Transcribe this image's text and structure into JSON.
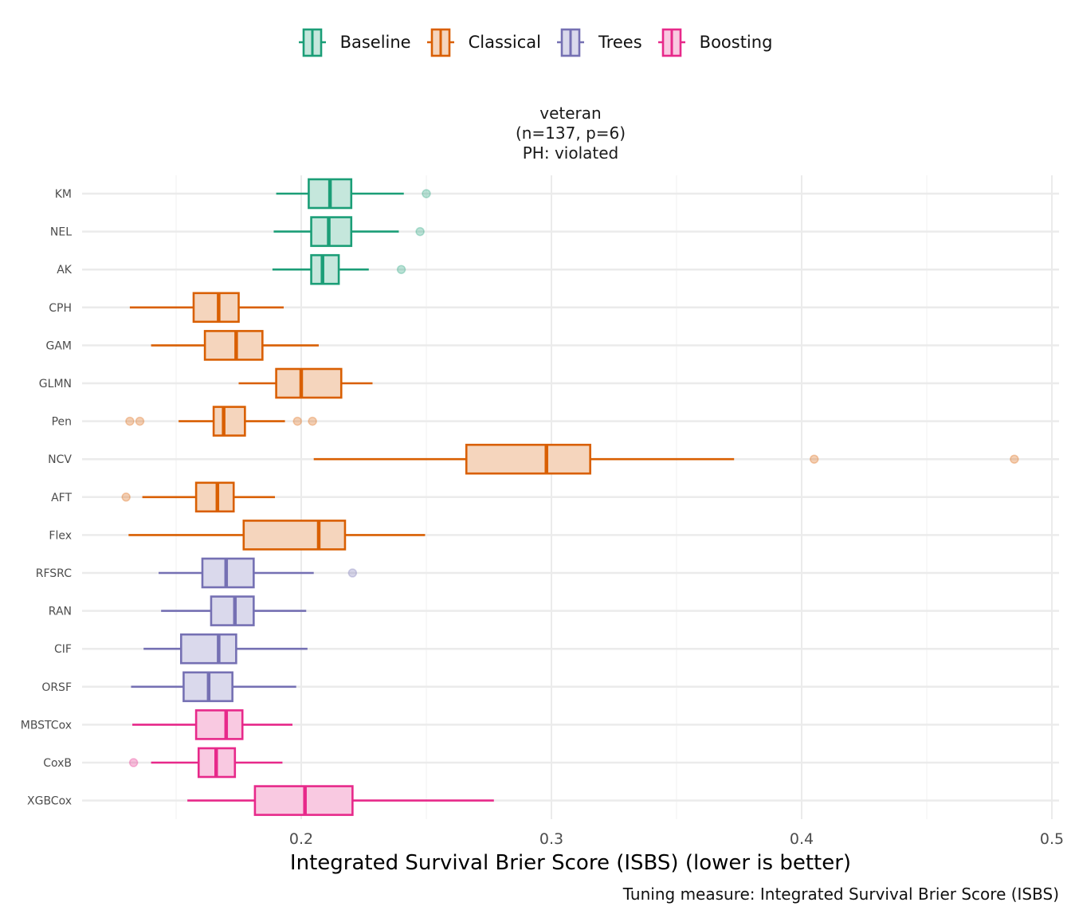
{
  "chart_data": {
    "type": "boxplot",
    "orientation": "horizontal",
    "facet_title": [
      "veteran",
      "(n=137, p=6)",
      "PH: violated"
    ],
    "xlabel": "Integrated Survival Brier Score (ISBS) (lower is better)",
    "ylabel": "",
    "caption": "Tuning measure: Integrated Survival Brier Score (ISBS)",
    "xlim": [
      0.115,
      0.503
    ],
    "x_ticks": [
      0.2,
      0.3,
      0.4,
      0.5
    ],
    "x_tick_labels": [
      "0.2",
      "0.3",
      "0.4",
      "0.5"
    ],
    "x_minor_gridlines": [
      0.15,
      0.25,
      0.35,
      0.45
    ],
    "grid": true,
    "legend_position": "top",
    "legend": [
      {
        "group": "Baseline",
        "color": "#1b9e77",
        "fill": "#c5e7dc"
      },
      {
        "group": "Classical",
        "color": "#d95f02",
        "fill": "#f5d5bd"
      },
      {
        "group": "Trees",
        "color": "#7570b3",
        "fill": "#dad9ec"
      },
      {
        "group": "Boosting",
        "color": "#e7298a",
        "fill": "#f9c9e1"
      }
    ],
    "boxes": [
      {
        "model": "KM",
        "group": "Baseline",
        "whisker_low": 0.19,
        "q1": 0.203,
        "median": 0.2115,
        "q3": 0.22,
        "whisker_high": 0.241,
        "outliers": [
          0.25
        ]
      },
      {
        "model": "NEL",
        "group": "Baseline",
        "whisker_low": 0.189,
        "q1": 0.204,
        "median": 0.211,
        "q3": 0.22,
        "whisker_high": 0.239,
        "outliers": [
          0.2475
        ]
      },
      {
        "model": "AK",
        "group": "Baseline",
        "whisker_low": 0.1885,
        "q1": 0.204,
        "median": 0.2085,
        "q3": 0.215,
        "whisker_high": 0.227,
        "outliers": [
          0.24
        ]
      },
      {
        "model": "CPH",
        "group": "Classical",
        "whisker_low": 0.1315,
        "q1": 0.157,
        "median": 0.167,
        "q3": 0.175,
        "whisker_high": 0.193,
        "outliers": []
      },
      {
        "model": "GAM",
        "group": "Classical",
        "whisker_low": 0.14,
        "q1": 0.1615,
        "median": 0.174,
        "q3": 0.1845,
        "whisker_high": 0.207,
        "outliers": []
      },
      {
        "model": "GLMN",
        "group": "Classical",
        "whisker_low": 0.175,
        "q1": 0.19,
        "median": 0.2,
        "q3": 0.216,
        "whisker_high": 0.2285,
        "outliers": []
      },
      {
        "model": "Pen",
        "group": "Classical",
        "whisker_low": 0.151,
        "q1": 0.165,
        "median": 0.169,
        "q3": 0.1775,
        "whisker_high": 0.1935,
        "outliers": [
          0.1315,
          0.1355,
          0.1985,
          0.2045
        ]
      },
      {
        "model": "NCV",
        "group": "Classical",
        "whisker_low": 0.205,
        "q1": 0.266,
        "median": 0.298,
        "q3": 0.3155,
        "whisker_high": 0.373,
        "outliers": [
          0.405,
          0.485
        ]
      },
      {
        "model": "AFT",
        "group": "Classical",
        "whisker_low": 0.1365,
        "q1": 0.158,
        "median": 0.1665,
        "q3": 0.173,
        "whisker_high": 0.1895,
        "outliers": [
          0.13
        ]
      },
      {
        "model": "Flex",
        "group": "Classical",
        "whisker_low": 0.131,
        "q1": 0.177,
        "median": 0.207,
        "q3": 0.2175,
        "whisker_high": 0.2495,
        "outliers": []
      },
      {
        "model": "RFSRC",
        "group": "Trees",
        "whisker_low": 0.143,
        "q1": 0.1605,
        "median": 0.17,
        "q3": 0.181,
        "whisker_high": 0.205,
        "outliers": [
          0.2205
        ]
      },
      {
        "model": "RAN",
        "group": "Trees",
        "whisker_low": 0.144,
        "q1": 0.164,
        "median": 0.1735,
        "q3": 0.181,
        "whisker_high": 0.202,
        "outliers": []
      },
      {
        "model": "CIF",
        "group": "Trees",
        "whisker_low": 0.137,
        "q1": 0.152,
        "median": 0.167,
        "q3": 0.174,
        "whisker_high": 0.2025,
        "outliers": []
      },
      {
        "model": "ORSF",
        "group": "Trees",
        "whisker_low": 0.132,
        "q1": 0.153,
        "median": 0.163,
        "q3": 0.1725,
        "whisker_high": 0.198,
        "outliers": []
      },
      {
        "model": "MBSTCox",
        "group": "Boosting",
        "whisker_low": 0.1325,
        "q1": 0.158,
        "median": 0.17,
        "q3": 0.1765,
        "whisker_high": 0.1965,
        "outliers": []
      },
      {
        "model": "CoxB",
        "group": "Boosting",
        "whisker_low": 0.14,
        "q1": 0.159,
        "median": 0.166,
        "q3": 0.1735,
        "whisker_high": 0.1925,
        "outliers": [
          0.133
        ]
      },
      {
        "model": "XGBCox",
        "group": "Boosting",
        "whisker_low": 0.1545,
        "q1": 0.1815,
        "median": 0.2015,
        "q3": 0.2205,
        "whisker_high": 0.277,
        "outliers": []
      }
    ]
  }
}
